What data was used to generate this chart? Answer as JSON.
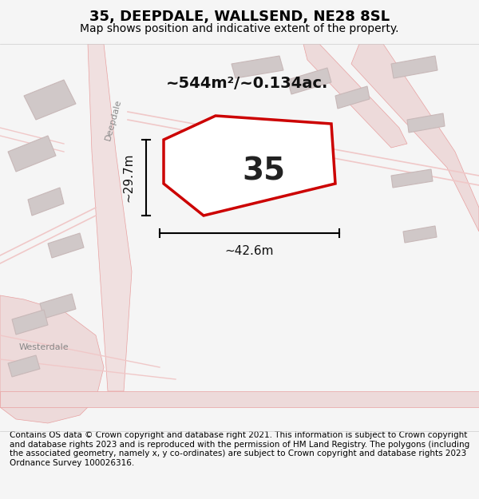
{
  "title": "35, DEEPDALE, WALLSEND, NE28 8SL",
  "subtitle": "Map shows position and indicative extent of the property.",
  "footer": "Contains OS data © Crown copyright and database right 2021. This information is subject to Crown copyright and database rights 2023 and is reproduced with the permission of HM Land Registry. The polygons (including the associated geometry, namely x, y co-ordinates) are subject to Crown copyright and database rights 2023 Ordnance Survey 100026316.",
  "area_label": "~544m²/~0.134ac.",
  "property_number": "35",
  "dim_width": "~42.6m",
  "dim_height": "~29.7m",
  "bg_color": "#f5f5f5",
  "map_bg_color": "#f0eeee",
  "road_color": "#f0c8c8",
  "building_color": "#d8d0d0",
  "plot_color": "#cc0000",
  "plot_fill": "#ffffff",
  "annotation_color": "#000000",
  "title_fontsize": 13,
  "subtitle_fontsize": 10,
  "footer_fontsize": 7.5
}
